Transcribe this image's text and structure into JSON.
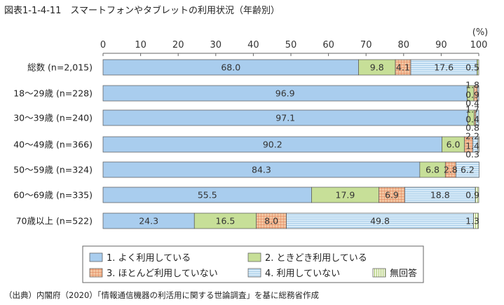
{
  "title": "図表1-1-4-11　スマートフォンやタブレットの利用状況（年齢別）",
  "source": "（出典）内閣府（2020）「情報通信機器の利活用に関する世論調査」を基に総務省作成",
  "chart_data": {
    "type": "bar",
    "orientation": "horizontal",
    "stacked": true,
    "unit": "(%)",
    "xlim": [
      0,
      100
    ],
    "x_ticks": [
      "0",
      "10",
      "20",
      "30",
      "40",
      "50",
      "60",
      "70",
      "80",
      "90",
      "100"
    ],
    "categories": [
      "総数 (n=2,015)",
      "18～29歳 (n=228)",
      "30～39歳 (n=240)",
      "40～49歳 (n=366)",
      "50～59歳 (n=324)",
      "60～69歳 (n=335)",
      "70歳以上 (n=522)"
    ],
    "series": [
      {
        "name": "1.  よく利用している",
        "color": "#a9cdee",
        "pattern": "none",
        "values": [
          68.0,
          96.9,
          97.1,
          90.2,
          84.3,
          55.5,
          24.3
        ],
        "labels": [
          "68.0",
          "96.9",
          "97.1",
          "90.2",
          "84.3",
          "55.5",
          "24.3"
        ]
      },
      {
        "name": "2.  ときどき利用している",
        "color": "#c7df98",
        "pattern": "none",
        "values": [
          9.8,
          1.8,
          1.7,
          6.0,
          6.8,
          17.9,
          16.5
        ],
        "labels": [
          "9.8",
          "1.8",
          "1.7",
          "6.0",
          "6.8",
          "17.9",
          "16.5"
        ]
      },
      {
        "name": "3.  ほとんど利用していない",
        "color": "#f2c4a0",
        "pattern": "grid",
        "values": [
          4.1,
          0.9,
          0.4,
          2.2,
          2.8,
          6.9,
          8.0
        ],
        "labels": [
          "4.1",
          "0.9",
          "0.4",
          "2.2",
          "2.8",
          "6.9",
          "8.0"
        ]
      },
      {
        "name": "4.  利用していない",
        "color": "#c6e0f4",
        "pattern": "hlines",
        "values": [
          17.6,
          0.4,
          0.8,
          1.4,
          6.2,
          18.8,
          49.8
        ],
        "labels": [
          "17.6",
          "0.4",
          "0.8",
          "1.4",
          "6.2",
          "18.8",
          "49.8"
        ]
      },
      {
        "name": "無回答",
        "color": "#e3eec2",
        "pattern": "vlines",
        "values": [
          0.5,
          0.0,
          0.0,
          0.3,
          0.0,
          0.9,
          1.3
        ],
        "labels": [
          "0.5",
          "",
          "",
          "0.3",
          "",
          "0.9",
          "1.3"
        ]
      }
    ],
    "legend_position": "bottom"
  }
}
